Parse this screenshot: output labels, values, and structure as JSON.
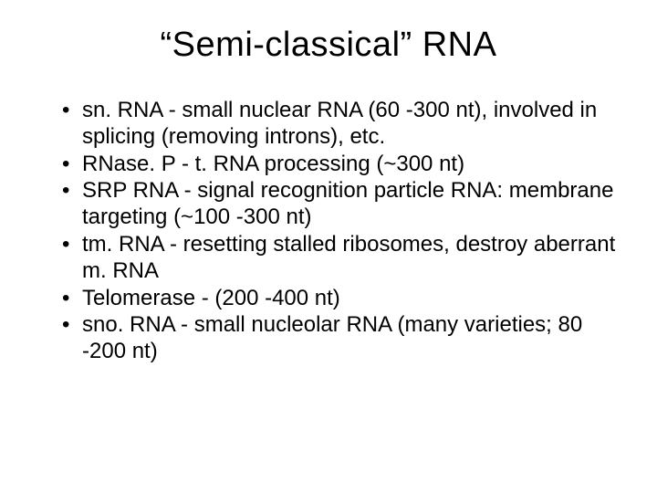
{
  "slide": {
    "title": "“Semi-classical” RNA",
    "bullets": [
      "sn. RNA - small nuclear RNA (60 -300 nt), involved in splicing (removing introns), etc.",
      "RNase. P - t. RNA processing (~300 nt)",
      "SRP RNA - signal recognition particle RNA: membrane targeting (~100 -300 nt)",
      "tm. RNA - resetting stalled ribosomes, destroy aberrant m. RNA",
      "Telomerase - (200 -400 nt)",
      "sno. RNA - small nucleolar RNA (many varieties; 80 -200 nt)"
    ],
    "title_fontsize": 38,
    "bullet_fontsize": 24,
    "background_color": "#ffffff",
    "text_color": "#000000"
  }
}
